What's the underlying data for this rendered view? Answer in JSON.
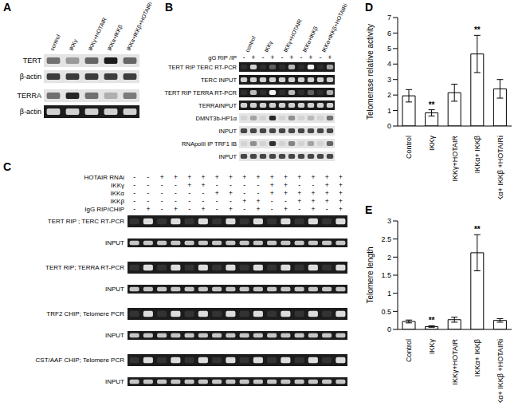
{
  "panel_labels": [
    "A",
    "B",
    "C",
    "D",
    "E"
  ],
  "gels": {
    "A": {
      "lanes": [
        "control",
        "IKKγ",
        "IKKγ+HOTAIR",
        "IKKα+IKKβ",
        "IKKα+IKKβ+HOTAIRi"
      ],
      "rows": [
        "TERT",
        "β-actin",
        "TERRA",
        "β-actin"
      ]
    },
    "B": {
      "groups": [
        "control",
        "IKKγ",
        "IKKγ+HOTAIR",
        "IKKα+IKKβ",
        "IKKα+IKKβ+HOTAIRi"
      ],
      "sign_row": {
        "label": "gG RIP /IP",
        "signs": [
          "-",
          "+",
          "-",
          "+",
          "-",
          "+",
          "-",
          "+",
          "-",
          "+"
        ]
      },
      "rows": [
        "TERT RIP TERC RT-PCR",
        "TERC INPUT",
        "TERT RIP TERRA RT-PCR",
        "TERRAINPUT",
        "DMNT3b-HP1α",
        "INPUT",
        "RNApolII IP TRF1 IB",
        "INPUT"
      ]
    },
    "C": {
      "sign_rows": [
        {
          "label": "HOTAIR RNAi",
          "signs": [
            "-",
            "-",
            "+",
            "+",
            "+",
            "+",
            "+",
            "+",
            "+",
            "+",
            "+",
            "+",
            "+",
            "+",
            "+",
            "+"
          ]
        },
        {
          "label": "IKKγ",
          "signs": [
            "-",
            "-",
            "-",
            "-",
            "+",
            "+",
            "-",
            "-",
            "-",
            "-",
            "+",
            "+",
            "-",
            "-",
            "+",
            "+"
          ]
        },
        {
          "label": "IKKα",
          "signs": [
            "-",
            "-",
            "-",
            "-",
            "-",
            "-",
            "+",
            "+",
            "-",
            "-",
            "+",
            "+",
            "+",
            "+",
            "+",
            "+"
          ]
        },
        {
          "label": "IKKβ",
          "signs": [
            "-",
            "-",
            "-",
            "-",
            "-",
            "-",
            "-",
            "-",
            "+",
            "+",
            "-",
            "-",
            "+",
            "+",
            "+",
            "+"
          ]
        },
        {
          "label": "IgG RIP/CHIP",
          "signs": [
            "-",
            "+",
            "-",
            "+",
            "-",
            "+",
            "-",
            "+",
            "-",
            "+",
            "-",
            "+",
            "-",
            "+",
            "-",
            "+"
          ]
        }
      ],
      "rows": [
        "TERT RIP ; TERC RT-PCR",
        "INPUT",
        "TERT RIP; TERRA RT-PCR",
        "INPUT",
        "TRF2 CHIP; Telomere PCR",
        "INPUT",
        "CST/AAF CHIP; Telomere PCR",
        "INPUT"
      ]
    }
  },
  "chart_data": [
    {
      "type": "bar",
      "y_label": "Telomerase relative activity",
      "categories": [
        "Control",
        "IKKγ",
        "IKKγ+HOTAIR",
        "IKKα+ IKKβ",
        "IKKα+ IKKβ +HOTAIRi"
      ],
      "values": [
        1.95,
        0.85,
        2.15,
        4.65,
        2.4
      ],
      "errors": [
        0.4,
        0.2,
        0.55,
        1.2,
        0.6
      ],
      "color": "#ffffff",
      "ylim": [
        0,
        7
      ],
      "yticks": [
        0,
        1,
        2,
        3,
        4,
        5,
        6,
        7
      ],
      "annotations": [
        {
          "category": "IKKγ",
          "text": "**"
        },
        {
          "category": "IKKα+ IKKβ",
          "text": "**"
        }
      ]
    },
    {
      "type": "bar",
      "y_label": "Telomere length",
      "categories": [
        "Control",
        "IKKγ",
        "IKKγ+HOTAIR",
        "IKKα+ IKKβ",
        "IKKα+ IKKβ +HOTAIRi"
      ],
      "values": [
        0.22,
        0.08,
        0.27,
        2.12,
        0.25
      ],
      "errors": [
        0.04,
        0.02,
        0.07,
        0.5,
        0.05
      ],
      "color": "#ffffff",
      "ylim": [
        0,
        3
      ],
      "yticks": [
        0,
        0.5,
        1,
        1.5,
        2,
        2.5,
        3
      ],
      "annotations": [
        {
          "category": "IKKγ",
          "text": "**"
        },
        {
          "category": "IKKα+ IKKβ",
          "text": "**"
        }
      ]
    }
  ]
}
